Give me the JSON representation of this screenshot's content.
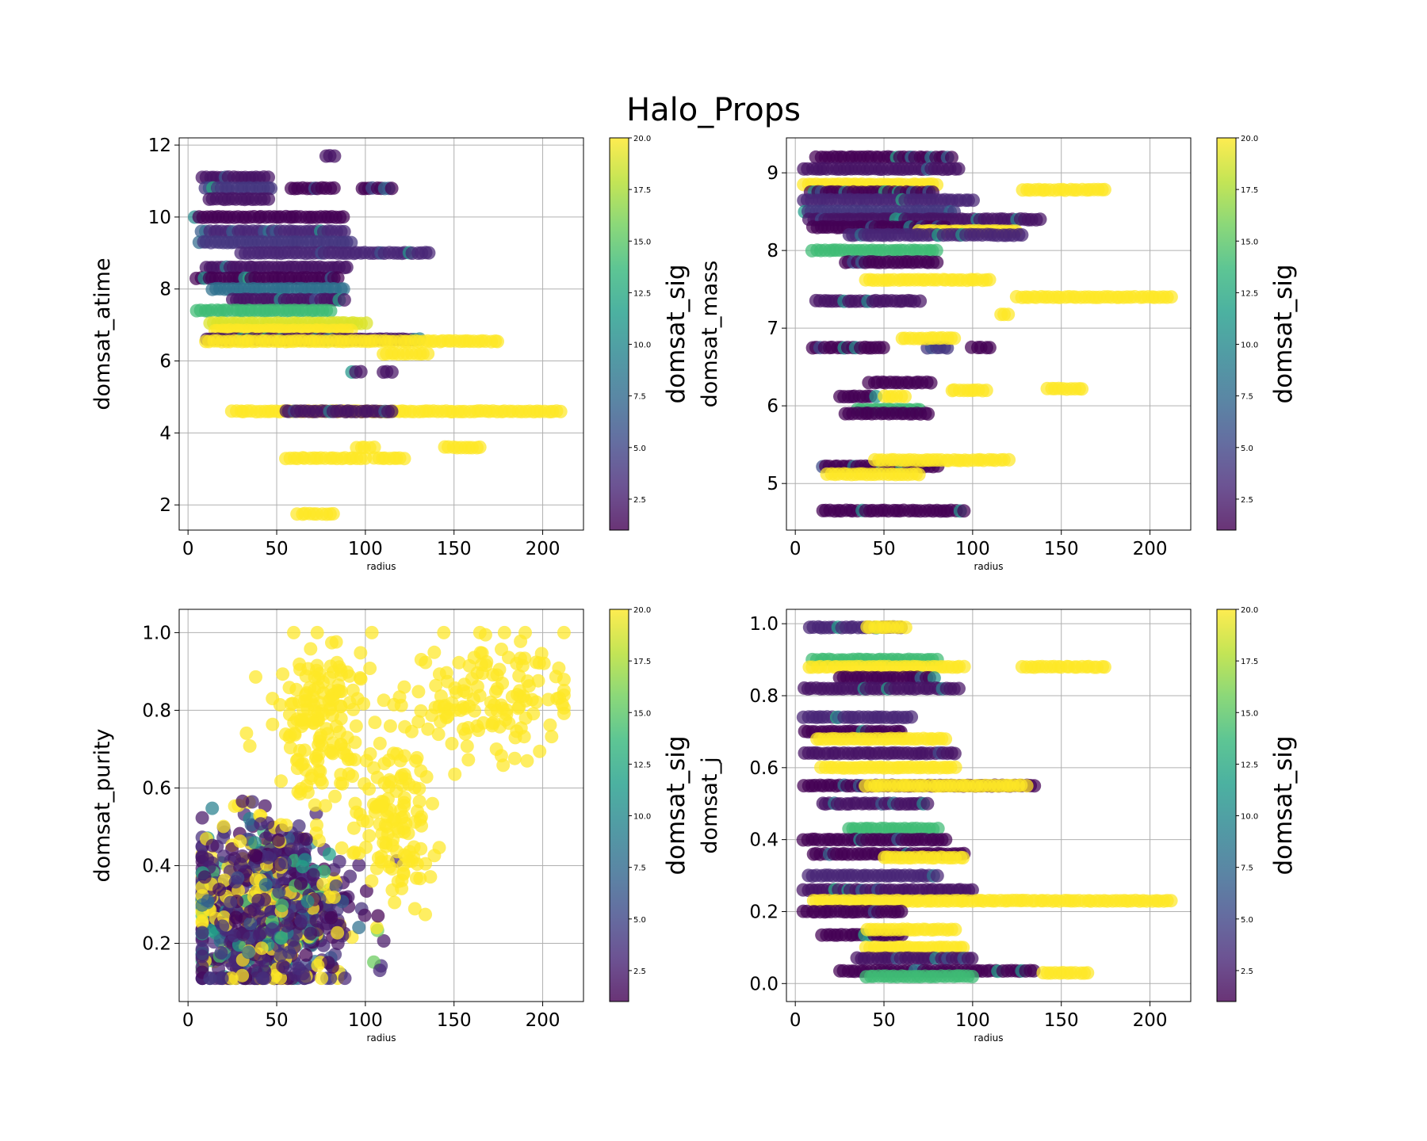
{
  "title": "Halo_Props",
  "colorbar": {
    "label": "domsat_sig",
    "range": [
      1,
      20
    ],
    "ticks": [
      "2.5",
      "5.0",
      "7.5",
      "10.0",
      "12.5",
      "15.0",
      "17.5",
      "20.0"
    ],
    "colormap": [
      "#440154",
      "#482878",
      "#3e4989",
      "#31688e",
      "#26828e",
      "#1f9e89",
      "#35b779",
      "#6ece58",
      "#b5de2b",
      "#fde725"
    ]
  },
  "chart_data": [
    {
      "type": "scatter",
      "xlabel": "radius",
      "ylabel": "domsat_atime",
      "xlim": [
        -5,
        223
      ],
      "ylim": [
        1.3,
        12.2
      ],
      "xticks": [
        "0",
        "50",
        "100",
        "150",
        "200"
      ],
      "yticks": [
        "2",
        "4",
        "6",
        "8",
        "10",
        "12"
      ],
      "bands": [
        {
          "x0": 8,
          "x1": 45,
          "y": 11.1,
          "sig": 2
        },
        {
          "x0": 10,
          "x1": 47,
          "y": 10.8,
          "sig": 4
        },
        {
          "x0": 12,
          "x1": 45,
          "y": 10.5,
          "sig": 2
        },
        {
          "x0": 58,
          "x1": 82,
          "y": 10.8,
          "sig": 1
        },
        {
          "x0": 98,
          "x1": 115,
          "y": 10.8,
          "sig": 1
        },
        {
          "x0": 78,
          "x1": 83,
          "y": 11.7,
          "sig": 2
        },
        {
          "x0": 4,
          "x1": 88,
          "y": 10.0,
          "sig": 1
        },
        {
          "x0": 8,
          "x1": 88,
          "y": 9.6,
          "sig": 3
        },
        {
          "x0": 6,
          "x1": 92,
          "y": 9.3,
          "sig": 4
        },
        {
          "x0": 30,
          "x1": 136,
          "y": 9.0,
          "sig": 3
        },
        {
          "x0": 10,
          "x1": 90,
          "y": 8.6,
          "sig": 2
        },
        {
          "x0": 5,
          "x1": 85,
          "y": 8.3,
          "sig": 1
        },
        {
          "x0": 14,
          "x1": 88,
          "y": 8.0,
          "sig": 8
        },
        {
          "x0": 25,
          "x1": 88,
          "y": 7.7,
          "sig": 2
        },
        {
          "x0": 5,
          "x1": 80,
          "y": 7.4,
          "sig": 14
        },
        {
          "x0": 12,
          "x1": 100,
          "y": 7.05,
          "sig": 19
        },
        {
          "x0": 15,
          "x1": 92,
          "y": 6.85,
          "sig": 20
        },
        {
          "x0": 10,
          "x1": 130,
          "y": 6.6,
          "sig": 2
        },
        {
          "x0": 10,
          "x1": 175,
          "y": 6.55,
          "sig": 20
        },
        {
          "x0": 110,
          "x1": 135,
          "y": 6.2,
          "sig": 20
        },
        {
          "x0": 92,
          "x1": 97,
          "y": 5.7,
          "sig": 2
        },
        {
          "x0": 110,
          "x1": 115,
          "y": 5.7,
          "sig": 2
        },
        {
          "x0": 25,
          "x1": 210,
          "y": 4.6,
          "sig": 20
        },
        {
          "x0": 55,
          "x1": 115,
          "y": 4.6,
          "sig": 2
        },
        {
          "x0": 95,
          "x1": 105,
          "y": 3.6,
          "sig": 20
        },
        {
          "x0": 55,
          "x1": 100,
          "y": 3.3,
          "sig": 20
        },
        {
          "x0": 105,
          "x1": 122,
          "y": 3.3,
          "sig": 20
        },
        {
          "x0": 145,
          "x1": 165,
          "y": 3.6,
          "sig": 20
        },
        {
          "x0": 62,
          "x1": 82,
          "y": 1.75,
          "sig": 20
        }
      ]
    },
    {
      "type": "scatter",
      "xlabel": "radius",
      "ylabel": "domsat_mass",
      "xlim": [
        -5,
        223
      ],
      "ylim": [
        4.4,
        9.45
      ],
      "xticks": [
        "0",
        "50",
        "100",
        "150",
        "200"
      ],
      "yticks": [
        "5",
        "6",
        "7",
        "8",
        "9"
      ],
      "bands": [
        {
          "x0": 12,
          "x1": 88,
          "y": 9.2,
          "sig": 1
        },
        {
          "x0": 5,
          "x1": 92,
          "y": 9.05,
          "sig": 2
        },
        {
          "x0": 5,
          "x1": 80,
          "y": 8.85,
          "sig": 20
        },
        {
          "x0": 8,
          "x1": 78,
          "y": 8.75,
          "sig": 1
        },
        {
          "x0": 5,
          "x1": 100,
          "y": 8.65,
          "sig": 3
        },
        {
          "x0": 128,
          "x1": 175,
          "y": 8.78,
          "sig": 20
        },
        {
          "x0": 5,
          "x1": 90,
          "y": 8.5,
          "sig": 4
        },
        {
          "x0": 8,
          "x1": 138,
          "y": 8.4,
          "sig": 2
        },
        {
          "x0": 10,
          "x1": 85,
          "y": 8.3,
          "sig": 1
        },
        {
          "x0": 70,
          "x1": 125,
          "y": 8.25,
          "sig": 20
        },
        {
          "x0": 30,
          "x1": 128,
          "y": 8.2,
          "sig": 3
        },
        {
          "x0": 10,
          "x1": 80,
          "y": 8.0,
          "sig": 14
        },
        {
          "x0": 28,
          "x1": 80,
          "y": 7.85,
          "sig": 1
        },
        {
          "x0": 40,
          "x1": 110,
          "y": 7.62,
          "sig": 20
        },
        {
          "x0": 12,
          "x1": 70,
          "y": 7.35,
          "sig": 2
        },
        {
          "x0": 125,
          "x1": 212,
          "y": 7.4,
          "sig": 20
        },
        {
          "x0": 116,
          "x1": 120,
          "y": 7.18,
          "sig": 20
        },
        {
          "x0": 10,
          "x1": 50,
          "y": 6.75,
          "sig": 1
        },
        {
          "x0": 75,
          "x1": 86,
          "y": 6.75,
          "sig": 4
        },
        {
          "x0": 100,
          "x1": 110,
          "y": 6.75,
          "sig": 1
        },
        {
          "x0": 60,
          "x1": 90,
          "y": 6.87,
          "sig": 20
        },
        {
          "x0": 42,
          "x1": 76,
          "y": 6.3,
          "sig": 1
        },
        {
          "x0": 25,
          "x1": 45,
          "y": 6.12,
          "sig": 1
        },
        {
          "x0": 50,
          "x1": 62,
          "y": 6.12,
          "sig": 20
        },
        {
          "x0": 88,
          "x1": 108,
          "y": 6.2,
          "sig": 20
        },
        {
          "x0": 142,
          "x1": 162,
          "y": 6.22,
          "sig": 20
        },
        {
          "x0": 35,
          "x1": 70,
          "y": 5.95,
          "sig": 14
        },
        {
          "x0": 28,
          "x1": 75,
          "y": 5.9,
          "sig": 1
        },
        {
          "x0": 15,
          "x1": 80,
          "y": 5.22,
          "sig": 1
        },
        {
          "x0": 45,
          "x1": 120,
          "y": 5.3,
          "sig": 20
        },
        {
          "x0": 18,
          "x1": 70,
          "y": 5.12,
          "sig": 20
        },
        {
          "x0": 15,
          "x1": 95,
          "y": 4.65,
          "sig": 1
        }
      ]
    },
    {
      "type": "scatter",
      "xlabel": "radius",
      "ylabel": "domsat_purity",
      "xlim": [
        -5,
        223
      ],
      "ylim": [
        0.05,
        1.06
      ],
      "xticks": [
        "0",
        "50",
        "100",
        "150",
        "200"
      ],
      "yticks": [
        "0.2",
        "0.4",
        "0.6",
        "0.8",
        "1.0"
      ],
      "clouds": [
        {
          "xc": 45,
          "yc": 0.28,
          "sx": 22,
          "sy": 0.11,
          "n": 900,
          "sig": "mixed"
        },
        {
          "xc": 75,
          "yc": 0.78,
          "sx": 15,
          "sy": 0.1,
          "n": 160,
          "sig": 20
        },
        {
          "xc": 115,
          "yc": 0.5,
          "sx": 12,
          "sy": 0.1,
          "n": 120,
          "sig": 20
        },
        {
          "xc": 170,
          "yc": 0.84,
          "sx": 22,
          "sy": 0.08,
          "n": 140,
          "sig": 20
        }
      ]
    },
    {
      "type": "scatter",
      "xlabel": "radius",
      "ylabel": "domsat_j",
      "xlim": [
        -5,
        223
      ],
      "ylim": [
        -0.05,
        1.04
      ],
      "xticks": [
        "0",
        "50",
        "100",
        "150",
        "200"
      ],
      "yticks": [
        "0.0",
        "0.2",
        "0.4",
        "0.6",
        "0.8",
        "1.0"
      ],
      "bands": [
        {
          "x0": 8,
          "x1": 60,
          "y": 0.99,
          "sig": 3
        },
        {
          "x0": 40,
          "x1": 62,
          "y": 0.99,
          "sig": 20
        },
        {
          "x0": 10,
          "x1": 80,
          "y": 0.9,
          "sig": 14
        },
        {
          "x0": 8,
          "x1": 95,
          "y": 0.88,
          "sig": 20
        },
        {
          "x0": 25,
          "x1": 78,
          "y": 0.85,
          "sig": 1
        },
        {
          "x0": 128,
          "x1": 175,
          "y": 0.88,
          "sig": 20
        },
        {
          "x0": 5,
          "x1": 92,
          "y": 0.82,
          "sig": 2
        },
        {
          "x0": 5,
          "x1": 65,
          "y": 0.74,
          "sig": 3
        },
        {
          "x0": 5,
          "x1": 60,
          "y": 0.7,
          "sig": 1
        },
        {
          "x0": 12,
          "x1": 85,
          "y": 0.68,
          "sig": 20
        },
        {
          "x0": 5,
          "x1": 90,
          "y": 0.64,
          "sig": 2
        },
        {
          "x0": 15,
          "x1": 90,
          "y": 0.6,
          "sig": 20
        },
        {
          "x0": 5,
          "x1": 135,
          "y": 0.55,
          "sig": 1
        },
        {
          "x0": 40,
          "x1": 130,
          "y": 0.55,
          "sig": 20
        },
        {
          "x0": 15,
          "x1": 75,
          "y": 0.5,
          "sig": 2
        },
        {
          "x0": 30,
          "x1": 80,
          "y": 0.43,
          "sig": 14
        },
        {
          "x0": 5,
          "x1": 85,
          "y": 0.4,
          "sig": 1
        },
        {
          "x0": 10,
          "x1": 95,
          "y": 0.36,
          "sig": 1
        },
        {
          "x0": 50,
          "x1": 95,
          "y": 0.35,
          "sig": 20
        },
        {
          "x0": 8,
          "x1": 80,
          "y": 0.3,
          "sig": 3
        },
        {
          "x0": 5,
          "x1": 100,
          "y": 0.26,
          "sig": 2
        },
        {
          "x0": 10,
          "x1": 212,
          "y": 0.23,
          "sig": 20
        },
        {
          "x0": 5,
          "x1": 60,
          "y": 0.2,
          "sig": 1
        },
        {
          "x0": 15,
          "x1": 60,
          "y": 0.135,
          "sig": 1
        },
        {
          "x0": 40,
          "x1": 90,
          "y": 0.15,
          "sig": 20
        },
        {
          "x0": 40,
          "x1": 95,
          "y": 0.1,
          "sig": 20
        },
        {
          "x0": 35,
          "x1": 100,
          "y": 0.07,
          "sig": 2
        },
        {
          "x0": 25,
          "x1": 135,
          "y": 0.035,
          "sig": 1
        },
        {
          "x0": 40,
          "x1": 100,
          "y": 0.02,
          "sig": 14
        },
        {
          "x0": 140,
          "x1": 165,
          "y": 0.03,
          "sig": 20
        }
      ]
    }
  ]
}
